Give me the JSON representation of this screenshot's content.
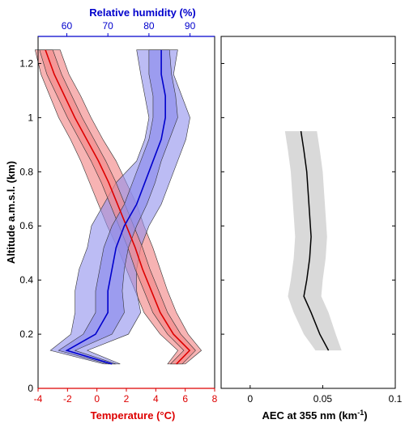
{
  "chart_data": [
    {
      "type": "line",
      "panel": "left",
      "ylabel": "Altitude a.m.s.l. (km)",
      "ylim": [
        0,
        1.3
      ],
      "yticks": [
        0,
        0.2,
        0.4,
        0.6,
        0.8,
        1,
        1.2
      ],
      "ytick_labels": [
        "0",
        "0.2",
        "0.4",
        "0.6",
        "0.8",
        "1",
        "1.2"
      ],
      "xlabel_bottom": "Temperature (°C)",
      "xlim_bottom": [
        -4,
        8
      ],
      "xticks_bottom": [
        -4,
        -2,
        0,
        2,
        4,
        6,
        8
      ],
      "xtick_labels_bottom": [
        "-4",
        "-2",
        "0",
        "2",
        "4",
        "6",
        "8"
      ],
      "xlabel_top": "Relative humidity (%)",
      "xlim_top": [
        53,
        96
      ],
      "xticks_top": [
        60,
        70,
        80,
        90
      ],
      "xtick_labels_top": [
        "60",
        "70",
        "80",
        "90"
      ],
      "colors": {
        "temperature": "#dd0000",
        "temperature_band": "#f28b8b",
        "humidity": "#0000cc",
        "humidity_band": "#8f8fec",
        "bottom_axis": "#dd0000",
        "top_axis": "#0000cc"
      },
      "series": [
        {
          "name": "Temperature",
          "axis": "bottom",
          "altitude": [
            0.09,
            0.14,
            0.2,
            0.28,
            0.36,
            0.44,
            0.52,
            0.6,
            0.68,
            0.76,
            0.84,
            0.92,
            1.0,
            1.08,
            1.16,
            1.25
          ],
          "mean": [
            5.4,
            6.3,
            5.2,
            4.3,
            3.7,
            3.1,
            2.6,
            2.0,
            1.4,
            0.8,
            0.1,
            -0.7,
            -1.5,
            -2.2,
            -2.9,
            -3.5
          ],
          "inner": [
            [
              5.0,
              5.8
            ],
            [
              5.9,
              6.7
            ],
            [
              4.8,
              5.7
            ],
            [
              3.8,
              4.8
            ],
            [
              3.2,
              4.2
            ],
            [
              2.6,
              3.6
            ],
            [
              2.1,
              3.1
            ],
            [
              1.5,
              2.5
            ],
            [
              0.9,
              1.9
            ],
            [
              0.3,
              1.3
            ],
            [
              -0.4,
              0.6
            ],
            [
              -1.2,
              -0.2
            ],
            [
              -2.0,
              -1.0
            ],
            [
              -2.7,
              -1.7
            ],
            [
              -3.4,
              -2.4
            ],
            [
              -3.9,
              -3.0
            ]
          ],
          "outer": [
            [
              4.8,
              6.0
            ],
            [
              5.5,
              7.1
            ],
            [
              4.3,
              6.2
            ],
            [
              3.2,
              5.4
            ],
            [
              2.6,
              4.8
            ],
            [
              2.0,
              4.3
            ],
            [
              1.4,
              3.8
            ],
            [
              0.7,
              3.2
            ],
            [
              0.1,
              2.7
            ],
            [
              -0.5,
              2.0
            ],
            [
              -1.1,
              1.3
            ],
            [
              -1.8,
              0.4
            ],
            [
              -2.6,
              -0.4
            ],
            [
              -3.2,
              -1.1
            ],
            [
              -3.8,
              -1.9
            ],
            [
              -4.2,
              -2.5
            ]
          ]
        },
        {
          "name": "Relative humidity",
          "axis": "top",
          "altitude": [
            0.09,
            0.14,
            0.2,
            0.28,
            0.36,
            0.44,
            0.52,
            0.6,
            0.68,
            0.76,
            0.84,
            0.92,
            1.0,
            1.08,
            1.16,
            1.25
          ],
          "mean": [
            71,
            60,
            67,
            70,
            70,
            71,
            72,
            74,
            77,
            79,
            81,
            83,
            84,
            84,
            83,
            83
          ],
          "inner": [
            [
              70,
              72
            ],
            [
              58,
              62
            ],
            [
              64,
              71
            ],
            [
              67,
              74
            ],
            [
              67,
              73.5
            ],
            [
              68,
              74
            ],
            [
              69,
              75
            ],
            [
              71,
              77
            ],
            [
              74,
              79.5
            ],
            [
              76,
              81.5
            ],
            [
              78,
              83
            ],
            [
              80,
              85
            ],
            [
              81,
              87
            ],
            [
              81,
              86.5
            ],
            [
              80,
              85.5
            ],
            [
              80,
              85
            ]
          ],
          "outer": [
            [
              69,
              73
            ],
            [
              56,
              65
            ],
            [
              61,
              75
            ],
            [
              62,
              78
            ],
            [
              62,
              77
            ],
            [
              63,
              77
            ],
            [
              65,
              78
            ],
            [
              66,
              80
            ],
            [
              69,
              83
            ],
            [
              72,
              85
            ],
            [
              77,
              87
            ],
            [
              79,
              89
            ],
            [
              80,
              90
            ],
            [
              79,
              88
            ],
            [
              78,
              86
            ],
            [
              77,
              87
            ]
          ]
        }
      ]
    },
    {
      "type": "line",
      "panel": "right",
      "xlabel": "AEC at 355 nm (km",
      "xlabel_sup": "-1",
      "xlabel_close": ")",
      "xlim": [
        -0.02,
        0.1
      ],
      "xticks": [
        0,
        0.05,
        0.1
      ],
      "xtick_labels": [
        "0",
        "0.05",
        "0.1"
      ],
      "ylim": [
        0,
        1.3
      ],
      "yticks": [
        0,
        0.2,
        0.4,
        0.6,
        0.8,
        1,
        1.2
      ],
      "colors": {
        "line": "#000000",
        "band": "#d9d9d9"
      },
      "series": [
        {
          "name": "AEC",
          "altitude": [
            0.14,
            0.2,
            0.28,
            0.34,
            0.4,
            0.48,
            0.56,
            0.64,
            0.72,
            0.8,
            0.88,
            0.95
          ],
          "mean": [
            0.054,
            0.048,
            0.042,
            0.037,
            0.039,
            0.041,
            0.042,
            0.041,
            0.04,
            0.039,
            0.037,
            0.035
          ],
          "band": [
            [
              0.045,
              0.063
            ],
            [
              0.037,
              0.059
            ],
            [
              0.03,
              0.054
            ],
            [
              0.026,
              0.049
            ],
            [
              0.028,
              0.05
            ],
            [
              0.03,
              0.052
            ],
            [
              0.031,
              0.053
            ],
            [
              0.03,
              0.052
            ],
            [
              0.029,
              0.051
            ],
            [
              0.028,
              0.05
            ],
            [
              0.026,
              0.048
            ],
            [
              0.024,
              0.046
            ]
          ]
        }
      ]
    }
  ]
}
